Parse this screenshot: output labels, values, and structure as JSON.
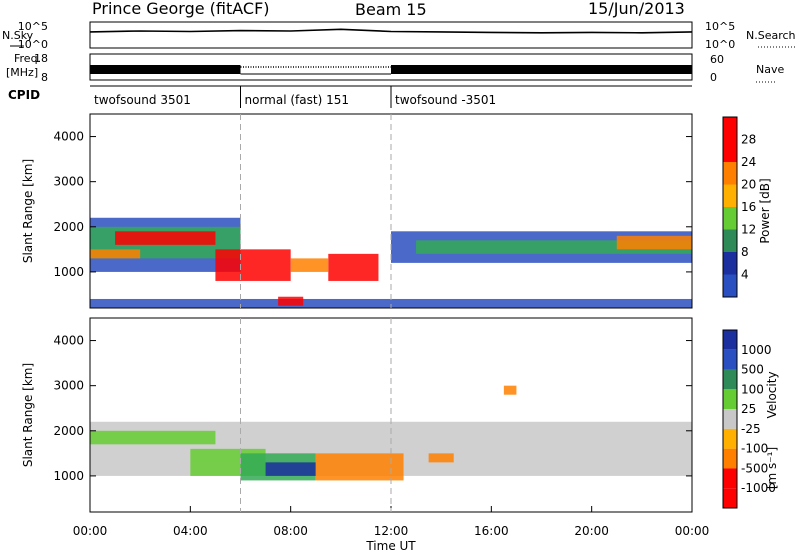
{
  "header": {
    "station": "Prince George (fitACF)",
    "beam": "Beam 15",
    "date": "15/Jun/2013"
  },
  "colors": {
    "red": "#ff0000",
    "orange": "#ff8000",
    "yellow_orange": "#ffb000",
    "light_green": "#66cc33",
    "green": "#33aa55",
    "teal": "#2e8b57",
    "blue": "#2a4fc0",
    "gray": "#c8c8c8",
    "dark_blue": "#1b2f9e"
  },
  "chart_data": [
    {
      "type": "line",
      "name": "nsky-nsearch-panel",
      "left_label": "N.Sky",
      "right_label": "N.Search",
      "left_ticks": [
        "10^5",
        "10^0"
      ],
      "right_ticks": [
        "10^5",
        "10^0"
      ],
      "series": [
        {
          "x": [
            "00:00",
            "02:00",
            "04:00",
            "06:00",
            "08:00",
            "10:00",
            "12:00",
            "14:00",
            "16:00",
            "18:00",
            "20:00",
            "22:00",
            "24:00"
          ],
          "y": [
            3.2,
            3.4,
            3.3,
            3.5,
            3.4,
            3.8,
            3.3,
            3.2,
            3.1,
            3.0,
            3.1,
            3.0,
            3.2
          ]
        }
      ]
    },
    {
      "type": "line",
      "name": "freq-nave-panel",
      "left_label_top": "Freq.",
      "left_label_bottom": "[MHz]",
      "right_label": "Nave",
      "left_ticks": [
        "18",
        "8"
      ],
      "right_ticks": [
        "60",
        "0"
      ],
      "segments": [
        {
          "start": "00:00",
          "end": "06:00",
          "style": "solid"
        },
        {
          "start": "06:00",
          "end": "12:00",
          "style": "dotted"
        },
        {
          "start": "12:00",
          "end": "24:00",
          "style": "solid"
        }
      ]
    },
    {
      "type": "table",
      "name": "cpid-row",
      "label": "CPID",
      "entries": [
        {
          "start": "00:00",
          "end": "06:00",
          "text": "twofsound 3501"
        },
        {
          "start": "06:00",
          "end": "12:00",
          "text": "normal (fast) 151"
        },
        {
          "start": "12:00",
          "end": "24:00",
          "text": "twofsound -3501"
        }
      ]
    },
    {
      "type": "heatmap",
      "name": "power-panel",
      "ylabel": "Slant Range [km]",
      "yticks": [
        "4000",
        "3000",
        "2000",
        "1000"
      ],
      "colorbar_label": "Power [dB]",
      "colorbar_ticks": [
        "28",
        "24",
        "20",
        "16",
        "12",
        "8",
        "4"
      ],
      "range_km": [
        200,
        4500
      ],
      "bands": [
        {
          "x0": 0,
          "x1": 6,
          "y0": 1000,
          "y1": 2200,
          "color": "blue"
        },
        {
          "x0": 0,
          "x1": 6,
          "y0": 1300,
          "y1": 2000,
          "color": "green"
        },
        {
          "x0": 1,
          "x1": 5,
          "y0": 1600,
          "y1": 1900,
          "color": "red"
        },
        {
          "x0": 0,
          "x1": 2,
          "y0": 1300,
          "y1": 1500,
          "color": "orange"
        },
        {
          "x0": 5,
          "x1": 8,
          "y0": 800,
          "y1": 1500,
          "color": "red"
        },
        {
          "x0": 9.5,
          "x1": 11.5,
          "y0": 800,
          "y1": 1400,
          "color": "red"
        },
        {
          "x0": 8,
          "x1": 9.5,
          "y0": 1000,
          "y1": 1300,
          "color": "orange"
        },
        {
          "x0": 12,
          "x1": 24,
          "y0": 1200,
          "y1": 1900,
          "color": "blue"
        },
        {
          "x0": 13,
          "x1": 24,
          "y0": 1400,
          "y1": 1700,
          "color": "green"
        },
        {
          "x0": 21,
          "x1": 24,
          "y0": 1500,
          "y1": 1800,
          "color": "orange"
        },
        {
          "x0": 0,
          "x1": 24,
          "y0": 200,
          "y1": 400,
          "color": "blue"
        },
        {
          "x0": 7.5,
          "x1": 8.5,
          "y0": 250,
          "y1": 450,
          "color": "red"
        }
      ]
    },
    {
      "type": "heatmap",
      "name": "velocity-panel",
      "ylabel": "Slant Range [km]",
      "yticks": [
        "4000",
        "3000",
        "2000",
        "1000"
      ],
      "xticks": [
        "00:00",
        "04:00",
        "08:00",
        "12:00",
        "16:00",
        "20:00",
        "00:00"
      ],
      "xlabel": "Time UT",
      "colorbar_label": "Velocity",
      "colorbar_units": "[m s⁻¹]",
      "colorbar_ticks": [
        "1000",
        "500",
        "100",
        "25",
        "-25",
        "-100",
        "-500",
        "-1000"
      ],
      "range_km": [
        200,
        4500
      ],
      "bands": [
        {
          "x0": 0,
          "x1": 24,
          "y0": 1000,
          "y1": 2200,
          "color": "gray"
        },
        {
          "x0": 0,
          "x1": 5,
          "y0": 1700,
          "y1": 2000,
          "color": "light_green"
        },
        {
          "x0": 4,
          "x1": 7,
          "y0": 1000,
          "y1": 1600,
          "color": "light_green"
        },
        {
          "x0": 6,
          "x1": 9,
          "y0": 900,
          "y1": 1500,
          "color": "green"
        },
        {
          "x0": 7,
          "x1": 9,
          "y0": 1000,
          "y1": 1300,
          "color": "dark_blue"
        },
        {
          "x0": 9,
          "x1": 12.5,
          "y0": 900,
          "y1": 1500,
          "color": "orange"
        },
        {
          "x0": 13.5,
          "x1": 14.5,
          "y0": 1300,
          "y1": 1500,
          "color": "orange"
        },
        {
          "x0": 16.5,
          "x1": 17,
          "y0": 2800,
          "y1": 3000,
          "color": "orange"
        }
      ]
    }
  ]
}
